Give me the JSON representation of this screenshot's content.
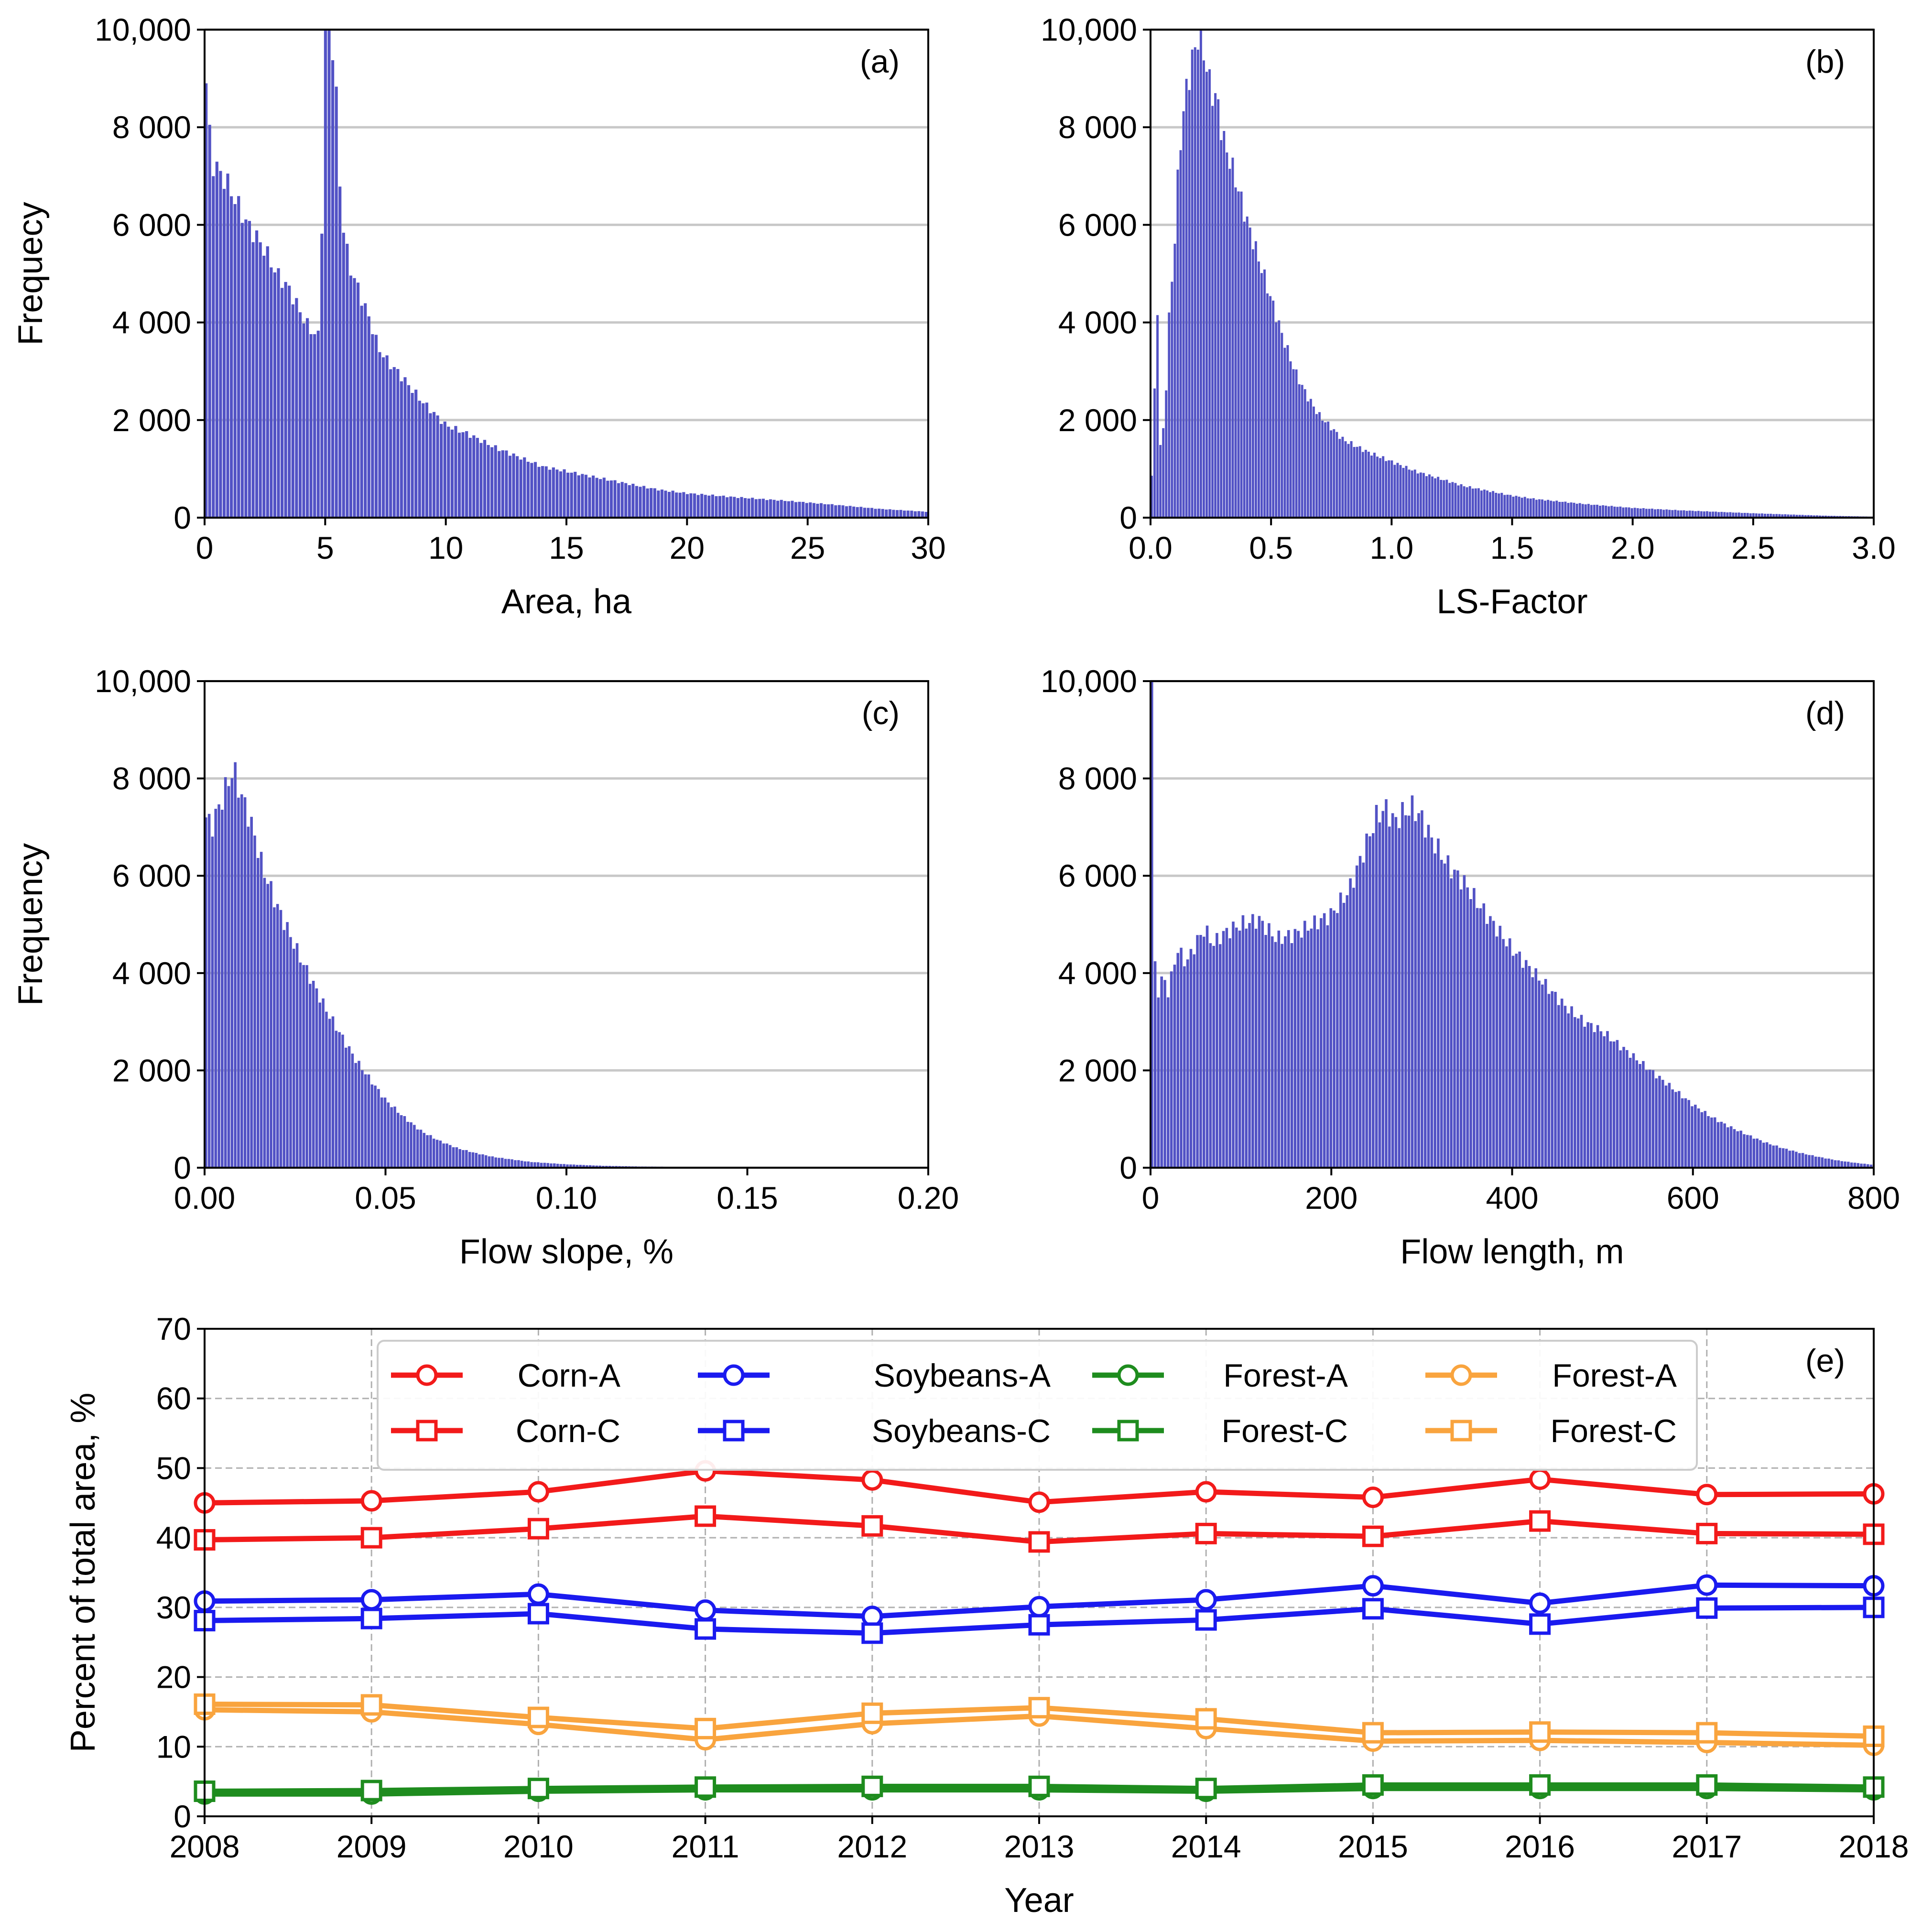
{
  "colors": {
    "histogram": "#5252c5",
    "grid": "#c8c8c8",
    "corn": "#f21a1a",
    "soybeans": "#1a1aef",
    "forest_green": "#1e8c1e",
    "forest_orange": "#f9a43e"
  },
  "chart_data": [
    {
      "type": "bar",
      "panel": "(a)",
      "xlabel": "Area, ha",
      "ylabel": "Frequecy",
      "xlim": [
        0,
        30
      ],
      "ylim": [
        0,
        10000
      ],
      "xticks": [
        "0",
        "5",
        "10",
        "15",
        "20",
        "25",
        "30"
      ],
      "yticks": [
        "0",
        "2 000",
        "4 000",
        "6 000",
        "8 000",
        "10,000"
      ],
      "grid": "horizontal",
      "bin_width": 0.15,
      "x": [
        0.08,
        0.3,
        0.6,
        0.9,
        1.2,
        1.5,
        1.8,
        2.1,
        2.5,
        3.0,
        3.5,
        3.9,
        4.2,
        4.5,
        4.8,
        5.0,
        5.2,
        5.4,
        5.6,
        5.8,
        6.0,
        6.3,
        6.6,
        6.9,
        7.2,
        7.6,
        8.0,
        8.5,
        9.0,
        9.5,
        10.0,
        11.0,
        12.0,
        13.0,
        14.0,
        15.0,
        16.0,
        17.0,
        18.0,
        19.0,
        20.0,
        22.0,
        24.0,
        26.0,
        28.0,
        30.0
      ],
      "values": [
        8900,
        7300,
        7100,
        6900,
        6600,
        6300,
        6000,
        5800,
        5500,
        5000,
        4700,
        4300,
        4000,
        3800,
        3700,
        9900,
        10000,
        9500,
        7000,
        5800,
        5200,
        4800,
        4400,
        4000,
        3500,
        3200,
        3000,
        2700,
        2400,
        2150,
        1900,
        1700,
        1450,
        1250,
        1050,
        950,
        850,
        750,
        650,
        560,
        500,
        420,
        350,
        270,
        180,
        120
      ]
    },
    {
      "type": "bar",
      "panel": "(b)",
      "xlabel": "LS-Factor",
      "ylabel": "",
      "xlim": [
        0,
        3.0
      ],
      "ylim": [
        0,
        10000
      ],
      "xticks": [
        "0.0",
        "0.5",
        "1.0",
        "1.5",
        "2.0",
        "2.5",
        "3.0"
      ],
      "yticks": [
        "0",
        "2 000",
        "4 000",
        "6 000",
        "8 000",
        "10,000"
      ],
      "grid": "horizontal",
      "bin_width": 0.012,
      "x": [
        0.0,
        0.03,
        0.04,
        0.06,
        0.08,
        0.1,
        0.12,
        0.15,
        0.18,
        0.2,
        0.22,
        0.25,
        0.28,
        0.3,
        0.35,
        0.4,
        0.45,
        0.5,
        0.55,
        0.6,
        0.65,
        0.7,
        0.8,
        0.9,
        1.0,
        1.1,
        1.2,
        1.3,
        1.4,
        1.5,
        1.6,
        1.8,
        2.0,
        2.2,
        2.5,
        2.8,
        3.0
      ],
      "values": [
        0,
        4300,
        1400,
        2000,
        4300,
        5500,
        7500,
        8800,
        9500,
        9900,
        9600,
        8800,
        8500,
        7800,
        7000,
        6100,
        5300,
        4500,
        3700,
        3000,
        2500,
        2100,
        1600,
        1350,
        1150,
        950,
        800,
        650,
        550,
        450,
        380,
        280,
        200,
        150,
        90,
        40,
        20
      ]
    },
    {
      "type": "bar",
      "panel": "(c)",
      "xlabel": "Flow slope, %",
      "ylabel": "Frequency",
      "xlim": [
        0,
        0.2
      ],
      "ylim": [
        0,
        10000
      ],
      "xticks": [
        "0.00",
        "0.05",
        "0.10",
        "0.15",
        "0.20"
      ],
      "yticks": [
        "0",
        "2 000",
        "4 000",
        "6 000",
        "8 000",
        "10,000"
      ],
      "grid": "horizontal",
      "bin_width": 0.0009,
      "x": [
        0.0005,
        0.002,
        0.004,
        0.006,
        0.008,
        0.01,
        0.012,
        0.014,
        0.016,
        0.018,
        0.02,
        0.023,
        0.026,
        0.03,
        0.034,
        0.038,
        0.042,
        0.046,
        0.05,
        0.055,
        0.06,
        0.065,
        0.07,
        0.075,
        0.08,
        0.09,
        0.1,
        0.11,
        0.12,
        0.14,
        0.16,
        0.18,
        0.2
      ],
      "values": [
        7200,
        7000,
        7400,
        7800,
        8200,
        7700,
        7300,
        6800,
        6200,
        5800,
        5400,
        4900,
        4400,
        3800,
        3200,
        2700,
        2200,
        1800,
        1400,
        1050,
        750,
        550,
        400,
        300,
        220,
        120,
        70,
        40,
        25,
        12,
        6,
        3,
        1
      ]
    },
    {
      "type": "bar",
      "panel": "(d)",
      "xlabel": "Flow length, m",
      "ylabel": "",
      "xlim": [
        0,
        800
      ],
      "ylim": [
        0,
        10000
      ],
      "xticks": [
        "0",
        "200",
        "400",
        "600",
        "800"
      ],
      "yticks": [
        "0",
        "2 000",
        "4 000",
        "6 000",
        "8 000",
        "10,000"
      ],
      "grid": "horizontal",
      "bin_width": 3.6,
      "x": [
        2,
        6,
        10,
        15,
        20,
        30,
        40,
        50,
        60,
        70,
        80,
        100,
        120,
        140,
        160,
        180,
        200,
        220,
        240,
        250,
        260,
        270,
        280,
        290,
        300,
        310,
        320,
        330,
        340,
        350,
        360,
        380,
        400,
        420,
        440,
        460,
        480,
        500,
        520,
        540,
        560,
        580,
        600,
        620,
        640,
        660,
        680,
        700,
        720,
        740,
        760,
        780,
        800
      ],
      "values": [
        10000,
        3100,
        3800,
        3900,
        3600,
        4500,
        4200,
        4600,
        4900,
        4600,
        4800,
        5000,
        5100,
        4700,
        4800,
        5000,
        5200,
        5700,
        6700,
        7200,
        7400,
        7100,
        7300,
        7400,
        7200,
        6800,
        6500,
        6200,
        6000,
        5800,
        5500,
        5000,
        4500,
        4100,
        3700,
        3300,
        3000,
        2800,
        2500,
        2200,
        1900,
        1600,
        1300,
        1050,
        850,
        680,
        520,
        400,
        300,
        220,
        150,
        100,
        60
      ]
    },
    {
      "type": "line",
      "panel": "(e)",
      "xlabel": "Year",
      "ylabel": "Percent of total area, %",
      "xlim": [
        2008,
        2018
      ],
      "ylim": [
        0,
        70
      ],
      "xticks": [
        "2008",
        "2009",
        "2010",
        "2011",
        "2012",
        "2013",
        "2014",
        "2015",
        "2016",
        "2017",
        "2018"
      ],
      "yticks": [
        "0",
        "10",
        "20",
        "30",
        "40",
        "50",
        "60",
        "70"
      ],
      "grid": "both",
      "legend_position": "top",
      "x": [
        2008,
        2009,
        2010,
        2011,
        2012,
        2013,
        2014,
        2015,
        2016,
        2017,
        2018
      ],
      "series": [
        {
          "name": "Corn-A",
          "color": "#f21a1a",
          "marker": "circle",
          "values": [
            45.0,
            45.3,
            46.6,
            49.6,
            48.3,
            45.1,
            46.6,
            45.8,
            48.4,
            46.2,
            46.3
          ]
        },
        {
          "name": "Corn-C",
          "color": "#f21a1a",
          "marker": "square",
          "values": [
            39.7,
            40.0,
            41.3,
            43.1,
            41.7,
            39.4,
            40.6,
            40.2,
            42.4,
            40.6,
            40.5
          ]
        },
        {
          "name": "Soybeans-A",
          "color": "#1a1aef",
          "marker": "circle",
          "values": [
            30.9,
            31.1,
            31.9,
            29.6,
            28.7,
            30.1,
            31.1,
            33.1,
            30.6,
            33.2,
            33.1
          ]
        },
        {
          "name": "Soybeans-C",
          "color": "#1a1aef",
          "marker": "square",
          "values": [
            28.1,
            28.4,
            29.1,
            26.9,
            26.3,
            27.5,
            28.2,
            29.8,
            27.6,
            29.9,
            30.0
          ]
        },
        {
          "name": "Forest-A",
          "color": "#1e8c1e",
          "marker": "circle",
          "values": [
            3.2,
            3.2,
            3.6,
            3.8,
            3.8,
            3.8,
            3.6,
            4.0,
            4.0,
            4.0,
            3.8
          ]
        },
        {
          "name": "Forest-A",
          "color": "#f9a43e",
          "marker": "circle",
          "values": [
            15.3,
            15.0,
            13.2,
            11.0,
            13.3,
            14.4,
            12.6,
            10.8,
            10.9,
            10.6,
            10.2
          ]
        },
        {
          "name": "Forest-C",
          "color": "#1e8c1e",
          "marker": "square",
          "values": [
            3.6,
            3.7,
            4.0,
            4.2,
            4.3,
            4.3,
            4.0,
            4.5,
            4.5,
            4.5,
            4.2
          ]
        },
        {
          "name": "Forest-C",
          "color": "#f9a43e",
          "marker": "square",
          "values": [
            16.1,
            16.0,
            14.2,
            12.6,
            14.8,
            15.6,
            14.0,
            12.0,
            12.1,
            12.0,
            11.5
          ]
        }
      ]
    }
  ]
}
